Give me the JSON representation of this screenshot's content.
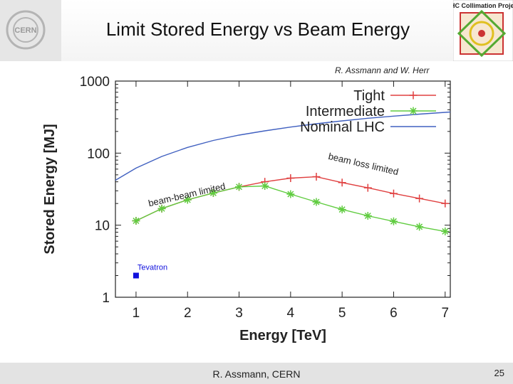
{
  "slide": {
    "title": "Limit Stored Energy vs Beam Energy",
    "credit": "R. Assmann and W. Herr",
    "footer_author": "R. Assmann, CERN",
    "page_number": "25",
    "logo_left_text": "CERN",
    "logo_right_text": "LHC Collimation Project"
  },
  "chart_data": {
    "type": "line",
    "xlabel": "Energy [TeV]",
    "ylabel": "Stored Energy [MJ]",
    "xlim": [
      0.6,
      7.1
    ],
    "ylim": [
      1,
      1000
    ],
    "yscale": "log",
    "xticks": [
      "1",
      "2",
      "3",
      "4",
      "5",
      "6",
      "7"
    ],
    "yticks": [
      "1",
      "10",
      "100",
      "1000"
    ],
    "legend_position": "top-right",
    "series": [
      {
        "name": "Tight",
        "color": "#e04040",
        "marker": "plus",
        "x": [
          1,
          1.5,
          2,
          2.5,
          3,
          3.5,
          4,
          4.5,
          5,
          5.5,
          6,
          6.5,
          7
        ],
        "y": [
          11.5,
          17,
          22.5,
          28,
          34,
          40,
          45,
          47,
          39,
          33,
          27.5,
          23.5,
          20
        ]
      },
      {
        "name": "Intermediate",
        "color": "#60cc40",
        "marker": "star",
        "x": [
          1,
          1.5,
          2,
          2.5,
          3,
          3.5,
          4,
          4.5,
          5,
          5.5,
          6,
          6.5,
          7
        ],
        "y": [
          11.5,
          17,
          22.5,
          28,
          34,
          35,
          27,
          21,
          16.5,
          13.5,
          11.3,
          9.5,
          8.2
        ]
      },
      {
        "name": "Nominal LHC",
        "color": "#4060c0",
        "marker": "none",
        "x": [
          0.6,
          1,
          1.5,
          2,
          2.5,
          3,
          3.5,
          4,
          4.5,
          5,
          5.5,
          6,
          6.5,
          7,
          7.1
        ],
        "y": [
          42,
          62,
          90,
          120,
          150,
          178,
          204,
          230,
          256,
          280,
          305,
          326,
          348,
          368,
          372
        ]
      }
    ],
    "points": [
      {
        "label": "Tevatron",
        "x": 1,
        "y": 2,
        "color": "#1010dd"
      }
    ],
    "annotations": [
      {
        "text": "beam-beam limited",
        "x": 2.0,
        "y": 24,
        "angle": -13
      },
      {
        "text": "beam loss limited",
        "x": 5.4,
        "y": 64,
        "angle": 13
      }
    ]
  }
}
